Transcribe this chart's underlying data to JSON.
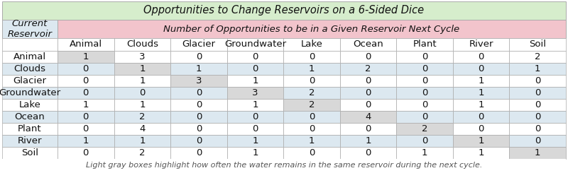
{
  "title": "Opportunities to Change Reservoirs on a 6-Sided Dice",
  "col_header_label": "Number of Opportunities to be in a Given Reservoir Next Cycle",
  "row_header_label": "Current\nReservoir",
  "columns": [
    "Animal",
    "Clouds",
    "Glacier",
    "Groundwater",
    "Lake",
    "Ocean",
    "Plant",
    "River",
    "Soil"
  ],
  "rows": [
    "Animal",
    "Clouds",
    "Glacier",
    "Groundwater",
    "Lake",
    "Ocean",
    "Plant",
    "River",
    "Soil"
  ],
  "matrix": [
    [
      1,
      3,
      0,
      0,
      0,
      0,
      0,
      0,
      2
    ],
    [
      0,
      1,
      1,
      0,
      1,
      2,
      0,
      0,
      1
    ],
    [
      0,
      1,
      3,
      1,
      0,
      0,
      0,
      1,
      0
    ],
    [
      0,
      0,
      0,
      3,
      2,
      0,
      0,
      1,
      0
    ],
    [
      1,
      1,
      0,
      1,
      2,
      0,
      0,
      1,
      0
    ],
    [
      0,
      2,
      0,
      0,
      0,
      4,
      0,
      0,
      0
    ],
    [
      0,
      4,
      0,
      0,
      0,
      0,
      2,
      0,
      0
    ],
    [
      1,
      1,
      0,
      1,
      1,
      1,
      0,
      1,
      0
    ],
    [
      0,
      2,
      0,
      1,
      0,
      0,
      1,
      1,
      1
    ]
  ],
  "diagonal_highlight_color": "#d8d8d8",
  "title_bg_color": "#d6edcc",
  "col_header_bg_color": "#f2c4cc",
  "row_header_bg_color": "#dce8f0",
  "cell_bg_white": "#ffffff",
  "cell_bg_light_blue": "#dce8f0",
  "footer_text": "Light gray boxes highlight how often the water remains in the same reservoir during the next cycle.",
  "border_color": "#aaaaaa",
  "text_color": "#111111",
  "title_fontsize": 10.5,
  "header_fontsize": 9.5,
  "col_name_fontsize": 9.5,
  "cell_fontsize": 9.5,
  "footer_fontsize": 8.0
}
